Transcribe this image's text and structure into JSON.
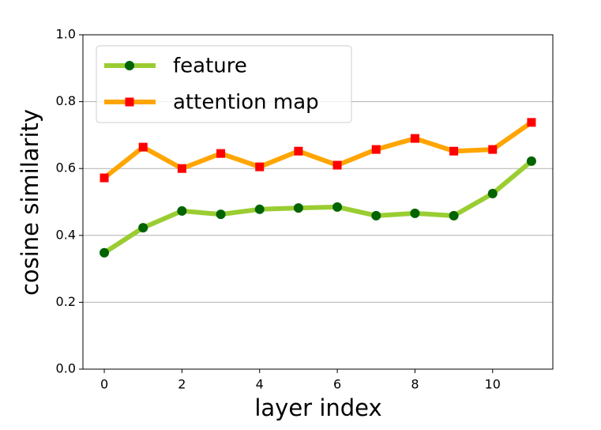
{
  "chart_data": {
    "type": "line",
    "xlabel": "layer index",
    "ylabel": "cosine similarity",
    "x": [
      0,
      1,
      2,
      3,
      4,
      5,
      6,
      7,
      8,
      9,
      10,
      11
    ],
    "series": [
      {
        "name": "feature",
        "color": "#9acd32",
        "marker": "circle",
        "marker_color": "#006400",
        "values": [
          0.348,
          0.423,
          0.473,
          0.463,
          0.478,
          0.482,
          0.485,
          0.459,
          0.466,
          0.459,
          0.525,
          0.622
        ]
      },
      {
        "name": "attention map",
        "color": "#ffa500",
        "marker": "square",
        "marker_color": "#ff0000",
        "values": [
          0.572,
          0.664,
          0.6,
          0.645,
          0.605,
          0.652,
          0.61,
          0.657,
          0.69,
          0.652,
          0.657,
          0.738
        ]
      }
    ],
    "xlim": [
      -0.55,
      11.55
    ],
    "xticks": [
      0,
      2,
      4,
      6,
      8,
      10
    ],
    "ylim": [
      0,
      1
    ],
    "yticks": [
      {
        "value": 0,
        "label": "0.0"
      },
      {
        "value": 0.2,
        "label": "0.2"
      },
      {
        "value": 0.4,
        "label": "0.4"
      },
      {
        "value": 0.6,
        "label": "0.6"
      },
      {
        "value": 0.8,
        "label": "0.8"
      },
      {
        "value": 1,
        "label": "1.0"
      }
    ],
    "grid": "y",
    "legend": "upper left"
  }
}
